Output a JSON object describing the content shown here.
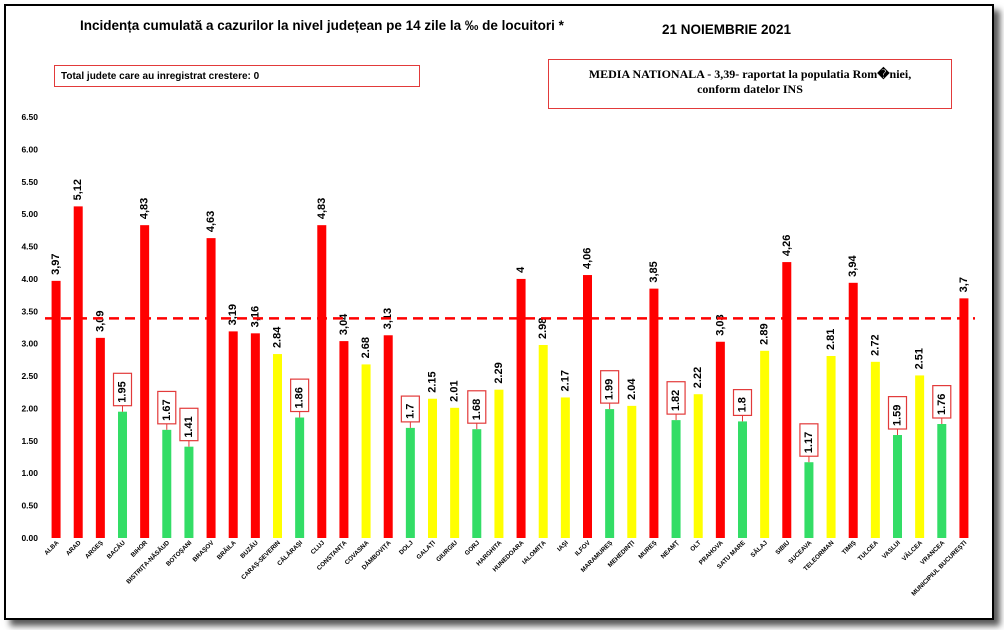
{
  "header": {
    "title": "Incidența cumulată a cazurilor la nivel județean pe 14 zile la ‰ de locuitori *",
    "date": "21 NOIEMBRIE 2021"
  },
  "notes": {
    "increase": "Total judete care au inregistrat crestere: 0",
    "media_line1": "MEDIA NATIONALA - 3,39-  raportat la populatia Rom�niei,",
    "media_line2": "conform datelor INS"
  },
  "colors": {
    "red": "#ff0000",
    "yellow": "#ffff00",
    "green": "#33dd66",
    "average_line": "#ff0000",
    "label_box": "#e23a3a"
  },
  "chart_data": {
    "type": "bar",
    "ylim": [
      0,
      6.5
    ],
    "y_ticks": [
      "0.00",
      "0.50",
      "1.00",
      "1.50",
      "2.00",
      "2.50",
      "3.00",
      "3.50",
      "4.00",
      "4.50",
      "5.00",
      "5.50",
      "6.00",
      "6.50"
    ],
    "average": 3.39,
    "categories": [
      "ALBA",
      "ARAD",
      "ARGEȘ",
      "BACĂU",
      "BIHOR",
      "BISTRIȚA-NĂSĂUD",
      "BOTOȘANI",
      "BRAȘOV",
      "BRĂILA",
      "BUZĂU",
      "CARAȘ-SEVERIN",
      "CĂLĂRAȘI",
      "CLUJ",
      "CONSTANȚA",
      "COVASNA",
      "DÂMBOVIȚA",
      "DOLJ",
      "GALAȚI",
      "GIURGIU",
      "GORJ",
      "HARGHITA",
      "HUNEDOARA",
      "IALOMIȚA",
      "IAȘI",
      "ILFOV",
      "MARAMUREȘ",
      "MEHEDINȚI",
      "MUREȘ",
      "NEAMȚ",
      "OLT",
      "PRAHOVA",
      "SATU MARE",
      "SĂLAJ",
      "SIBIU",
      "SUCEAVA",
      "TELEORMAN",
      "TIMIȘ",
      "TULCEA",
      "VASLUI",
      "VÂLCEA",
      "VRANCEA",
      "MUNICIPIUL BUCUREȘTI"
    ],
    "values": [
      3.97,
      5.12,
      3.09,
      1.95,
      4.83,
      1.67,
      1.41,
      4.63,
      3.19,
      3.16,
      2.84,
      1.86,
      4.83,
      3.04,
      2.68,
      3.13,
      1.7,
      2.15,
      2.01,
      1.68,
      2.29,
      4,
      2.98,
      2.17,
      4.06,
      1.99,
      2.04,
      3.85,
      1.82,
      2.22,
      3.03,
      1.8,
      2.89,
      4.26,
      1.17,
      2.81,
      3.94,
      2.72,
      1.59,
      2.51,
      1.76,
      3.7
    ],
    "labels": [
      "3,97",
      "5,12",
      "3,09",
      "1.95",
      "4,83",
      "1.67",
      "1.41",
      "4,63",
      "3,19",
      "3,16",
      "2.84",
      "1.86",
      "4,83",
      "3,04",
      "2.68",
      "3,13",
      "1.7",
      "2.15",
      "2.01",
      "1.68",
      "2.29",
      "4",
      "2.98",
      "2.17",
      "4,06",
      "1.99",
      "2.04",
      "3,85",
      "1.82",
      "2.22",
      "3,03",
      "1.8",
      "2.89",
      "4,26",
      "1.17",
      "2.81",
      "3,94",
      "2.72",
      "1.59",
      "2.51",
      "1.76",
      "3,7"
    ],
    "colors": [
      "red",
      "red",
      "red",
      "green",
      "red",
      "green",
      "green",
      "red",
      "red",
      "red",
      "yellow",
      "green",
      "red",
      "red",
      "yellow",
      "red",
      "green",
      "yellow",
      "yellow",
      "green",
      "yellow",
      "red",
      "yellow",
      "yellow",
      "red",
      "green",
      "yellow",
      "red",
      "green",
      "yellow",
      "red",
      "green",
      "yellow",
      "red",
      "green",
      "yellow",
      "red",
      "yellow",
      "green",
      "yellow",
      "green",
      "red"
    ],
    "boxed": [
      false,
      false,
      false,
      true,
      false,
      true,
      true,
      false,
      false,
      false,
      false,
      true,
      false,
      false,
      false,
      false,
      true,
      false,
      false,
      true,
      false,
      false,
      false,
      false,
      false,
      true,
      false,
      false,
      true,
      false,
      false,
      true,
      false,
      false,
      true,
      false,
      false,
      false,
      true,
      false,
      true,
      false
    ]
  }
}
